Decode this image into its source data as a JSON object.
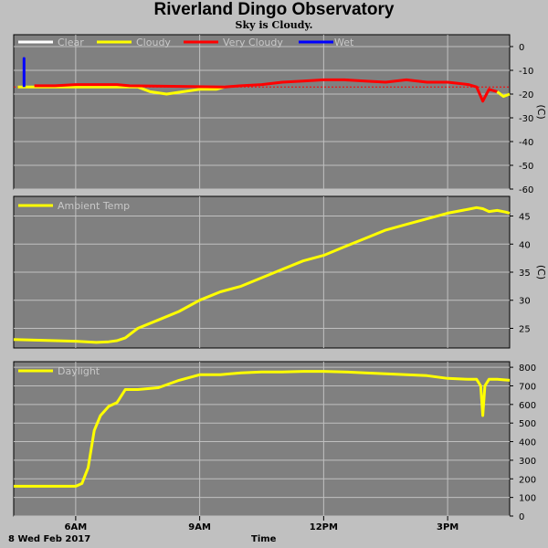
{
  "title": "Riverland Dingo Observatory",
  "subtitle": "Sky is Cloudy.",
  "date_label": "8 Wed Feb 2017",
  "x_axis_label": "Time",
  "colors": {
    "panel": "#808080",
    "grid": "#c0c0c0",
    "clear": "#ffffff",
    "cloudy": "#ffff00",
    "very_cloudy": "#ff0000",
    "wet": "#0000ff",
    "threshold": "#ff0000",
    "frame": "#c0c0c0"
  },
  "chart_data": [
    {
      "type": "line",
      "name": "sky",
      "ylim": [
        -60,
        5
      ],
      "yticks": [
        0,
        -10,
        -20,
        -30,
        -40,
        -50,
        -60
      ],
      "ylabel": "(C)",
      "xlim": [
        4.5,
        16.5
      ],
      "xticks": [
        6,
        9,
        12,
        15
      ],
      "xtick_labels": [
        "6AM",
        "9AM",
        "12PM",
        "3PM"
      ],
      "threshold": -17,
      "legend": [
        "Clear",
        "Cloudy",
        "Very Cloudy",
        "Wet"
      ],
      "series": [
        {
          "name": "Cloudy",
          "color_key": "cloudy",
          "x": [
            4.6,
            5.0,
            5.5,
            6.0,
            6.5,
            7.0,
            7.5,
            7.8,
            8.2,
            8.6,
            9.0,
            9.4,
            9.6
          ],
          "y": [
            -17,
            -17,
            -17,
            -17,
            -17,
            -17,
            -17,
            -19,
            -20,
            -19,
            -18,
            -18,
            -17
          ]
        },
        {
          "name": "Very Cloudy",
          "color_key": "very_cloudy",
          "x": [
            5.0,
            5.5,
            6.0,
            6.5,
            7.0,
            7.3,
            9.6,
            10.0,
            10.5,
            11.0,
            11.5,
            12.0,
            12.5,
            13.0,
            13.5,
            14.0,
            14.5,
            15.0,
            15.5,
            15.7,
            15.85,
            16.0,
            16.2
          ],
          "y": [
            -16.5,
            -16.5,
            -16,
            -16,
            -16,
            -16.5,
            -17,
            -16.5,
            -16,
            -15,
            -14.5,
            -14,
            -14,
            -14.5,
            -15,
            -14,
            -15,
            -15,
            -16,
            -17,
            -23,
            -18,
            -19
          ]
        },
        {
          "name": "Cloudy",
          "color_key": "cloudy",
          "x": [
            16.2,
            16.35,
            16.5
          ],
          "y": [
            -19,
            -21,
            -20
          ]
        },
        {
          "name": "Wet",
          "color_key": "wet",
          "x": [
            4.75,
            4.75,
            4.75,
            4.75
          ],
          "y": [
            -17,
            -5,
            -11,
            -17
          ]
        }
      ]
    },
    {
      "type": "line",
      "name": "ambient",
      "ylim": [
        21.5,
        48.5
      ],
      "yticks": [
        25,
        30,
        35,
        40,
        45
      ],
      "ylabel": "(C)",
      "xlim": [
        4.5,
        16.5
      ],
      "xticks": [
        6,
        9,
        12,
        15
      ],
      "legend": [
        "Ambient Temp"
      ],
      "series": [
        {
          "name": "Ambient Temp",
          "color_key": "cloudy",
          "x": [
            4.5,
            5.0,
            5.5,
            6.0,
            6.5,
            6.8,
            7.0,
            7.2,
            7.5,
            8.0,
            8.5,
            9.0,
            9.5,
            10.0,
            10.5,
            11.0,
            11.5,
            12.0,
            12.5,
            13.0,
            13.5,
            14.0,
            14.5,
            15.0,
            15.5,
            15.7,
            15.85,
            16.0,
            16.2,
            16.4,
            16.5
          ],
          "y": [
            23,
            22.9,
            22.8,
            22.7,
            22.5,
            22.6,
            22.8,
            23.3,
            25,
            26.5,
            28,
            30,
            31.5,
            32.5,
            34,
            35.5,
            37,
            38,
            39.5,
            41,
            42.5,
            43.5,
            44.5,
            45.5,
            46.2,
            46.5,
            46.3,
            45.8,
            46,
            45.7,
            45.5
          ]
        }
      ]
    },
    {
      "type": "line",
      "name": "daylight",
      "ylim": [
        0,
        830
      ],
      "yticks": [
        0,
        100,
        200,
        300,
        400,
        500,
        600,
        700,
        800
      ],
      "xlim": [
        4.5,
        16.5
      ],
      "xticks": [
        6,
        9,
        12,
        15
      ],
      "legend": [
        "Daylight"
      ],
      "series": [
        {
          "name": "Daylight",
          "color_key": "cloudy",
          "x": [
            4.5,
            5.0,
            5.5,
            6.0,
            6.15,
            6.3,
            6.45,
            6.6,
            6.8,
            7.0,
            7.2,
            7.5,
            8.0,
            8.5,
            9.0,
            9.5,
            10.0,
            10.5,
            11.0,
            11.5,
            12.0,
            12.5,
            13.0,
            13.5,
            14.0,
            14.5,
            15.0,
            15.5,
            15.7,
            15.8,
            15.85,
            15.9,
            16.0,
            16.2,
            16.5
          ],
          "y": [
            160,
            160,
            160,
            160,
            175,
            260,
            460,
            540,
            590,
            610,
            680,
            680,
            690,
            730,
            760,
            760,
            770,
            775,
            775,
            778,
            778,
            775,
            770,
            765,
            760,
            755,
            740,
            735,
            735,
            700,
            540,
            700,
            735,
            735,
            730
          ]
        }
      ]
    }
  ]
}
